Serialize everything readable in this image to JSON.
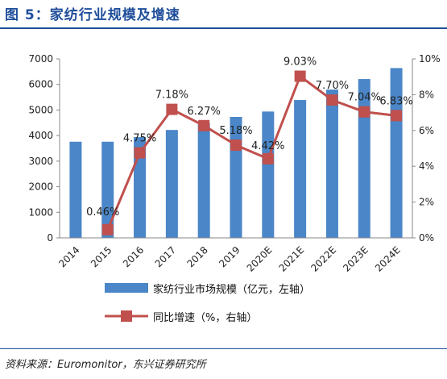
{
  "header": {
    "title": "图 5：家纺行业规模及增速"
  },
  "footer": {
    "source": "资料来源：Euromonitor，东兴证券研究所"
  },
  "colors": {
    "bar": "#4a86c8",
    "line": "#c0504d",
    "title": "#1f4e9b"
  },
  "chart_data": {
    "type": "bar",
    "categories": [
      "2014",
      "2015",
      "2016",
      "2017",
      "2018",
      "2019",
      "2020E",
      "2021E",
      "2022E",
      "2023E",
      "2024E"
    ],
    "series": [
      {
        "name": "家纺行业市场规模（亿元，左轴）",
        "type": "bar",
        "axis": "left",
        "values": [
          3760,
          3760,
          3940,
          4220,
          4480,
          4730,
          4940,
          5390,
          5800,
          6210,
          6640
        ]
      },
      {
        "name": "同比增速（%，右轴）",
        "type": "line",
        "axis": "right",
        "values": [
          null,
          0.46,
          4.75,
          7.18,
          6.27,
          5.18,
          4.42,
          9.03,
          7.7,
          7.04,
          6.83
        ],
        "labels": [
          "",
          "0.46%",
          "4.75%",
          "7.18%",
          "6.27%",
          "5.18%",
          "4.42%",
          "9.03%",
          "7.70%",
          "7.04%",
          "6.83%"
        ]
      }
    ],
    "y_left": {
      "min": 0,
      "max": 7000,
      "ticks": [
        "0",
        "1000",
        "2000",
        "3000",
        "4000",
        "5000",
        "6000",
        "7000"
      ]
    },
    "y_right": {
      "min": 0,
      "max": 10,
      "ticks": [
        "0%",
        "2%",
        "4%",
        "6%",
        "8%",
        "10%"
      ]
    },
    "grid": false,
    "legend_position": "bottom"
  }
}
